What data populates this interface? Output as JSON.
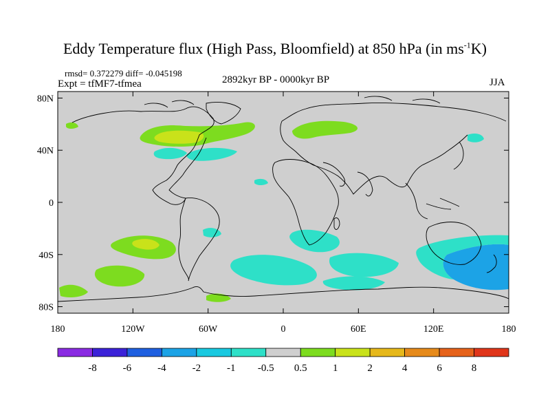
{
  "title": {
    "main": "Eddy Temperature flux (High Pass, Bloomfield) at 850 hPa (in ms",
    "sup": "-1",
    "end": "K)"
  },
  "stats": "rmsd= 0.372279 diff= -0.045198",
  "experiment": "Expt = tfMF7-tfmea",
  "period": "2892kyr BP - 0000kyr BP",
  "season": "JJA",
  "axes": {
    "lat_labels": [
      "80N",
      "40N",
      "0",
      "40S",
      "80S"
    ],
    "lat_values": [
      80,
      40,
      0,
      -40,
      -80
    ],
    "lon_labels": [
      "180",
      "120W",
      "60W",
      "0",
      "60E",
      "120E",
      "180"
    ],
    "lon_values": [
      -180,
      -120,
      -60,
      0,
      60,
      120,
      180
    ],
    "lat_range": [
      -85,
      85
    ],
    "lon_range": [
      -180,
      180
    ]
  },
  "colorbar": {
    "colors": [
      "#8a2be2",
      "#3b22d8",
      "#1e5fe0",
      "#1ca3e6",
      "#19c9e0",
      "#2ee0c8",
      "#cfcfcf",
      "#7ddc1f",
      "#c9e21a",
      "#e6b81a",
      "#e68a1a",
      "#e6621a",
      "#e0351a"
    ],
    "labels": [
      "-8",
      "-6",
      "-4",
      "-2",
      "-1",
      "-0.5",
      "0.5",
      "1",
      "2",
      "4",
      "6",
      "8"
    ]
  },
  "colors": {
    "background": "#cfcfcf",
    "coast": "#000000"
  }
}
